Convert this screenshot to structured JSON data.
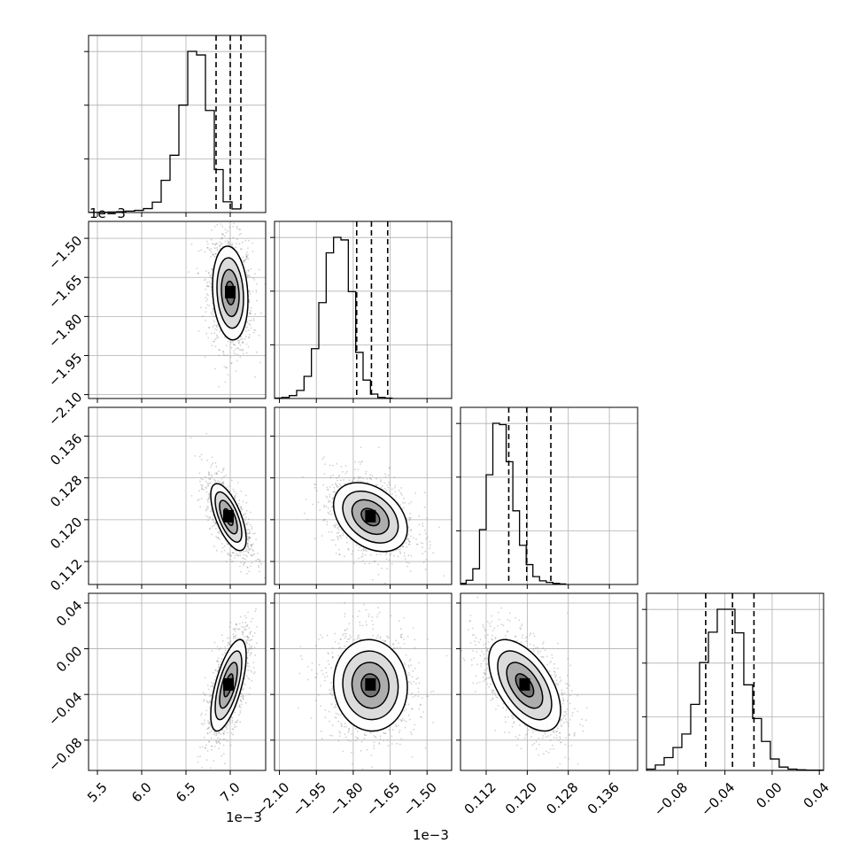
{
  "chart_data": {
    "type": "corner",
    "parameters": [
      {
        "xlim": [
          5.4,
          7.4
        ],
        "xticks": [
          "5.5",
          "6.0",
          "6.5",
          "7.0"
        ],
        "xtick_values": [
          5.5,
          6.0,
          6.5,
          7.0
        ],
        "offset_label": "1e−3"
      },
      {
        "xlim": [
          -2.12,
          -1.4
        ],
        "xticks": [
          "−2.10",
          "−1.95",
          "−1.80",
          "−1.65",
          "−1.50"
        ],
        "xtick_values": [
          -2.1,
          -1.95,
          -1.8,
          -1.65,
          -1.5
        ],
        "offset_label": "1e−3"
      },
      {
        "xlim": [
          0.107,
          0.1415
        ],
        "xticks": [
          "0.112",
          "0.120",
          "0.128",
          "0.136"
        ],
        "xtick_values": [
          0.112,
          0.12,
          0.128,
          0.136
        ]
      },
      {
        "xlim": [
          -0.1065,
          0.0436
        ],
        "xticks": [
          "−0.08",
          "−0.04",
          "0.00",
          "0.04"
        ],
        "xtick_values": [
          -0.08,
          -0.04,
          0.0,
          0.04
        ]
      }
    ],
    "row_axes": [
      {
        "row": 1,
        "ylim": [
          -2.115,
          -1.435
        ],
        "yticks": [
          "−2.10",
          "−1.95",
          "−1.80",
          "−1.65",
          "−1.50"
        ],
        "ytick_values": [
          -2.1,
          -1.95,
          -1.8,
          -1.65,
          -1.5
        ],
        "offset_label": "1e−3"
      },
      {
        "row": 2,
        "ylim": [
          0.1076,
          0.1415
        ],
        "yticks": [
          "0.112",
          "0.120",
          "0.128",
          "0.136"
        ],
        "ytick_values": [
          0.112,
          0.12,
          0.128,
          0.136
        ]
      },
      {
        "row": 3,
        "ylim": [
          -0.1065,
          0.0485
        ],
        "yticks": [
          "−0.08",
          "−0.04",
          "0.00",
          "0.04"
        ],
        "ytick_values": [
          -0.08,
          -0.04,
          0.0,
          0.04
        ]
      }
    ],
    "quantiles": [
      [
        6.84,
        7.0,
        7.12
      ],
      [
        -1.786,
        -1.726,
        -1.66
      ],
      [
        0.1164,
        0.1199,
        0.1246
      ],
      [
        -0.0563,
        -0.0336,
        -0.0154
      ]
    ],
    "histograms": [
      {
        "bin_start": 5.42,
        "bin_width": 0.1,
        "counts": [
          1,
          2,
          3,
          5,
          8,
          12,
          22,
          58,
          180,
          320,
          600,
          900,
          880,
          570,
          240,
          60,
          20
        ]
      },
      {
        "bin_start": -2.12,
        "bin_width": 0.03,
        "counts": [
          1,
          3,
          8,
          22,
          60,
          135,
          260,
          395,
          437,
          430,
          290,
          125,
          50,
          12,
          3,
          1
        ]
      },
      {
        "bin_start": 0.1068,
        "bin_width": 0.0013,
        "counts": [
          4,
          16,
          60,
          210,
          420,
          617,
          612,
          470,
          282,
          150,
          76,
          30,
          14,
          8,
          4,
          2
        ]
      },
      {
        "bin_start": -0.1065,
        "bin_width": 0.0075,
        "counts": [
          4,
          16,
          38,
          68,
          108,
          196,
          320,
          410,
          478,
          478,
          408,
          254,
          154,
          86,
          34,
          10,
          4,
          2,
          1,
          1
        ]
      }
    ],
    "contour_levels": [
      "0.5-sigma",
      "1-sigma",
      "1.5-sigma",
      "2-sigma"
    ],
    "pairs": [
      {
        "x": 0,
        "y": 1,
        "mean": [
          7.0,
          -1.71
        ],
        "sigma": [
          0.1,
          0.09
        ],
        "rho": -0.15
      },
      {
        "x": 0,
        "y": 2,
        "mean": [
          6.98,
          0.1205
        ],
        "sigma": [
          0.1,
          0.0032
        ],
        "rho": -0.65
      },
      {
        "x": 0,
        "y": 3,
        "mean": [
          6.98,
          -0.032
        ],
        "sigma": [
          0.1,
          0.02
        ],
        "rho": 0.65
      },
      {
        "x": 1,
        "y": 2,
        "mean": [
          -1.73,
          0.1205
        ],
        "sigma": [
          0.075,
          0.0033
        ],
        "rho": -0.35
      },
      {
        "x": 1,
        "y": 3,
        "mean": [
          -1.73,
          -0.032
        ],
        "sigma": [
          0.075,
          0.02
        ],
        "rho": -0.05
      },
      {
        "x": 2,
        "y": 3,
        "mean": [
          0.1195,
          -0.032
        ],
        "sigma": [
          0.0035,
          0.02
        ],
        "rho": -0.55
      }
    ],
    "grid": true
  }
}
